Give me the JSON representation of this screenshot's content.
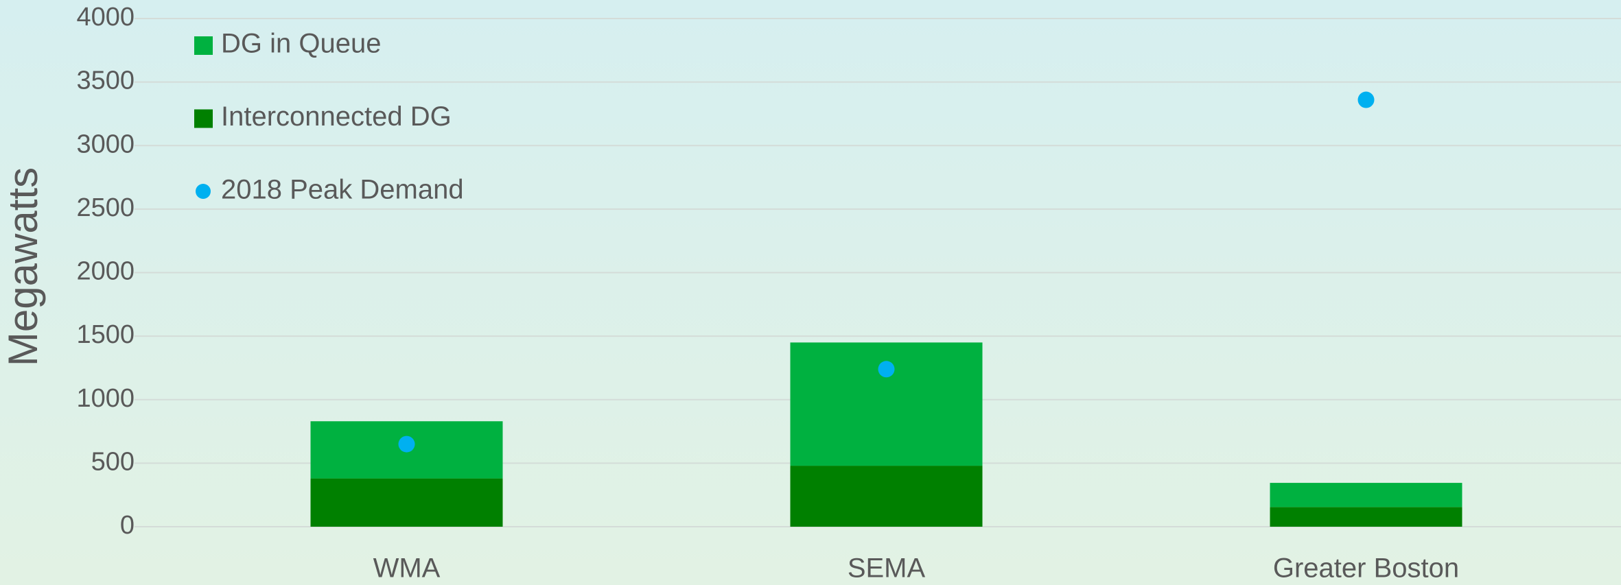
{
  "chart_data": {
    "type": "bar",
    "stacked": true,
    "y_label": "Megawatts",
    "categories": [
      "WMA",
      "SEMA",
      "Greater Boston"
    ],
    "series": [
      {
        "name": "DG in Queue",
        "color": "#00b140",
        "values": [
          450,
          970,
          190
        ]
      },
      {
        "name": "Interconnected DG",
        "color": "#008000",
        "values": [
          380,
          480,
          155
        ]
      },
      {
        "name": "2018 Peak Demand",
        "color": "#00b0f0",
        "type": "scatter",
        "values": [
          650,
          1240,
          3360
        ]
      }
    ],
    "ylim": [
      0,
      4000
    ],
    "yticks": [
      0,
      500,
      1000,
      1500,
      2000,
      2500,
      3000,
      3500,
      4000
    ],
    "grid": true,
    "legend": "top-left"
  }
}
